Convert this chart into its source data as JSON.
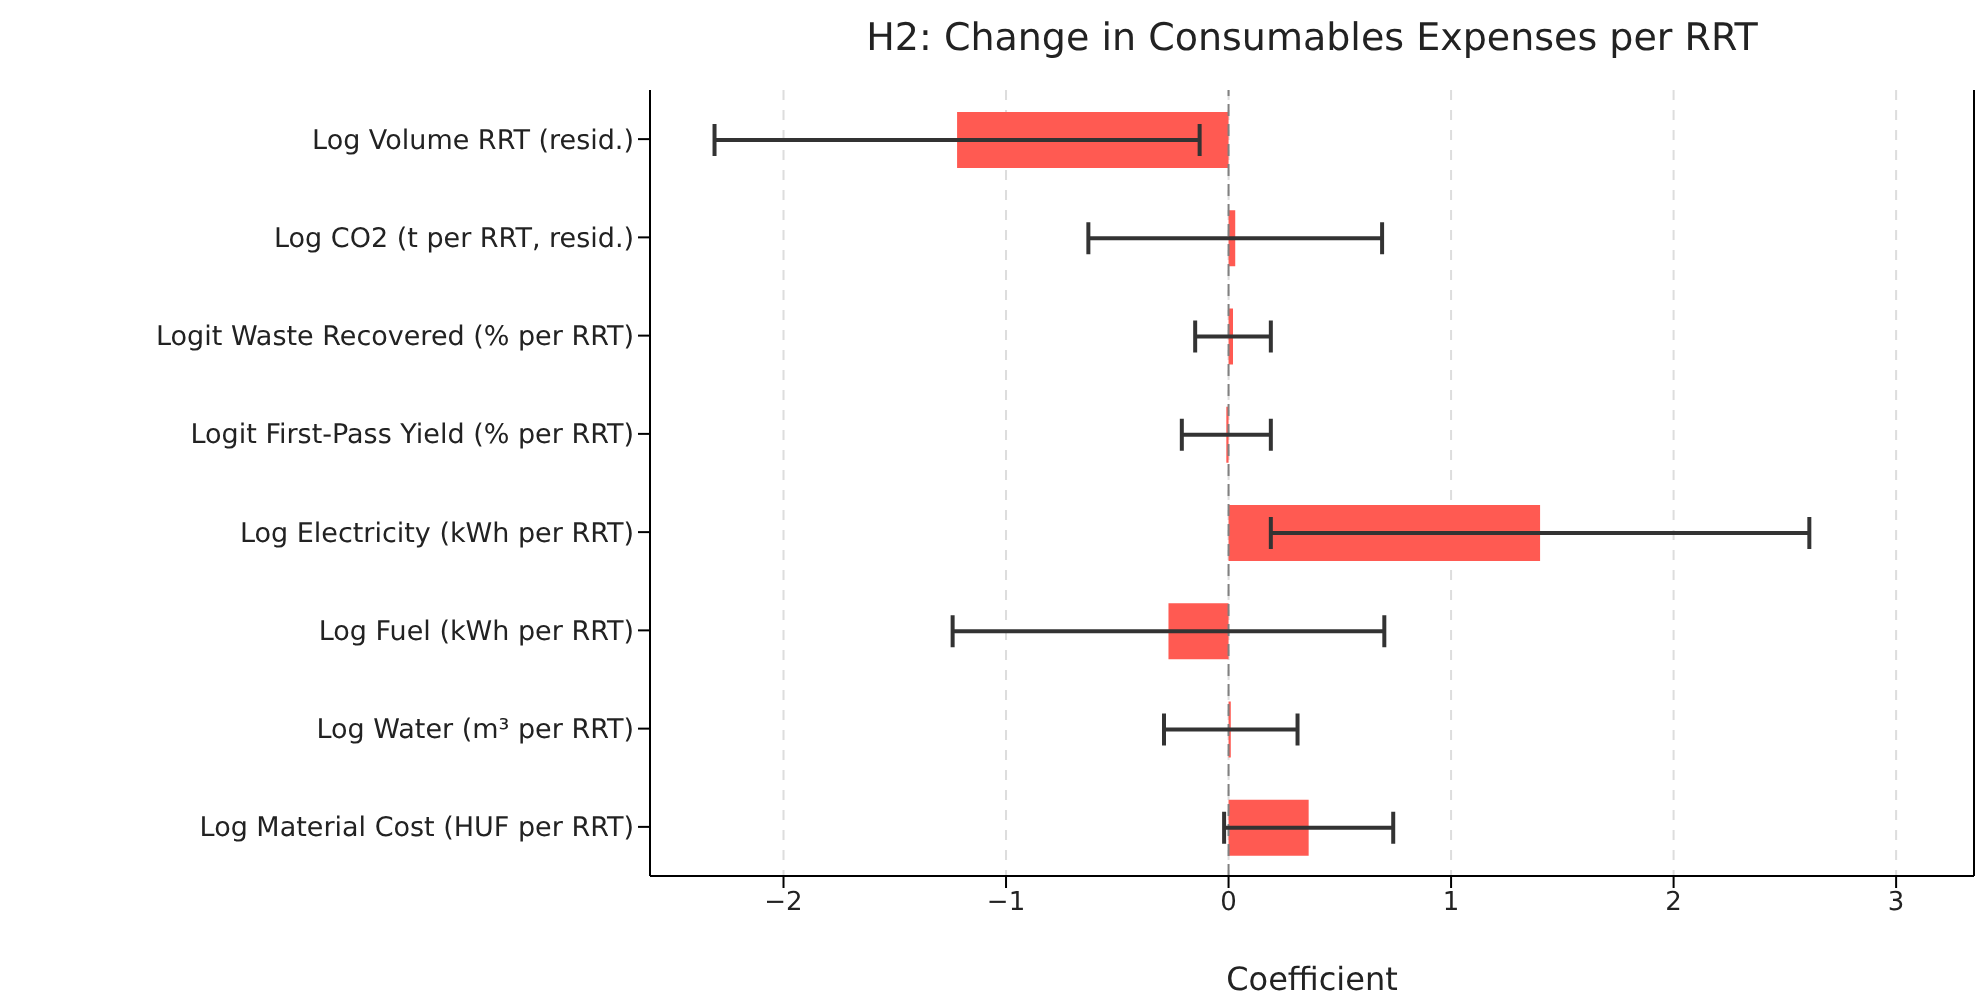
{
  "chart_data": {
    "type": "bar",
    "orientation": "horizontal",
    "title": "H2: Change in Consumables Expenses per RRT",
    "xlabel": "Coefficient",
    "categories": [
      "Log Volume RRT (resid.)",
      "Log CO2 (t per RRT, resid.)",
      "Logit Waste Recovered (% per RRT)",
      "Logit First-Pass Yield (% per RRT)",
      "Log Electricity (kWh per RRT)",
      "Log Fuel (kWh per RRT)",
      "Log Water (m³ per RRT)",
      "Log Material Cost (HUF per RRT)"
    ],
    "values": [
      -1.22,
      0.03,
      0.02,
      -0.01,
      1.4,
      -0.27,
      0.01,
      0.36
    ],
    "errors": [
      1.09,
      0.66,
      0.17,
      0.2,
      1.21,
      0.97,
      0.3,
      0.38
    ],
    "color": "#ff5a52",
    "xlim": [
      -2.6,
      3.35
    ],
    "xticks": [
      {
        "value": -2,
        "label": "−2"
      },
      {
        "value": -1,
        "label": "−1"
      },
      0,
      1,
      2,
      3
    ],
    "grid": "x",
    "ref_lines": [
      {
        "axis": "x",
        "value": 0,
        "color": "#808080",
        "line_style": "dashed"
      }
    ]
  }
}
